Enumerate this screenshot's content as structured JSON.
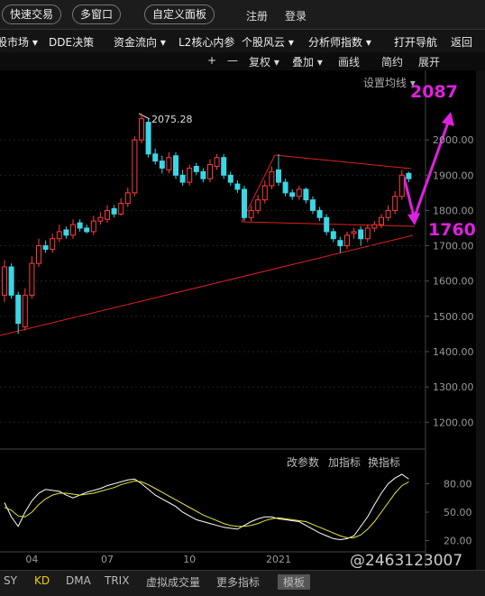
{
  "toolbar": {
    "buttons": [
      "快速交易",
      "多窗口",
      "自定义面板"
    ],
    "links": [
      "注册",
      "登录"
    ]
  },
  "menu": [
    "股市场 ▾",
    "DDE决策",
    "资金流向 ▾",
    "L2核心内参",
    "个股风云 ▾",
    "分析师指数 ▾",
    "打开导航",
    "返回"
  ],
  "chart_toolbar": [
    "+",
    "—",
    "复权 ▾",
    "叠加 ▾",
    "画线",
    "简约",
    "展开"
  ],
  "indicator_buttons": [
    "改参数",
    "加指标",
    "换指标"
  ],
  "tabs": [
    "SY",
    "KD",
    "DMA",
    "TRIX",
    "虚拟成交量",
    "更多指标",
    "模板"
  ],
  "watermark": "@2463123007",
  "chart_data": [
    {
      "type": "candlestick",
      "ma_button": "设置均线 ▾",
      "annotations": [
        "2075.28",
        "2087",
        "1760"
      ],
      "up_color": "#ff3c3c",
      "down_color": "#3ad6e6",
      "categories": [
        null,
        null,
        null,
        null,
        "04",
        null,
        null,
        null,
        null,
        null,
        null,
        null,
        null,
        null,
        null,
        "07",
        null,
        null,
        null,
        null,
        null,
        null,
        null,
        null,
        null,
        null,
        null,
        "10",
        null,
        null,
        null,
        null,
        null,
        null,
        null,
        null,
        null,
        null,
        null,
        null,
        "2021",
        null,
        null,
        null,
        null,
        null,
        null,
        null,
        null,
        null,
        null,
        null,
        null,
        null,
        null,
        null,
        null,
        null,
        null,
        null
      ],
      "open": [
        1560,
        1640,
        1560,
        1470,
        1560,
        1650,
        1700,
        1690,
        1720,
        1745,
        1730,
        1765,
        1750,
        1740,
        1770,
        1775,
        1805,
        1790,
        1820,
        1850,
        2000,
        2050,
        1960,
        1940,
        1915,
        1955,
        1900,
        1880,
        1925,
        1910,
        1890,
        1925,
        1950,
        1900,
        1875,
        1860,
        1780,
        1800,
        1830,
        1870,
        1915,
        1880,
        1850,
        1840,
        1860,
        1830,
        1800,
        1780,
        1740,
        1715,
        1700,
        1735,
        1745,
        1720,
        1750,
        1760,
        1780,
        1800,
        1840,
        1905
      ],
      "high": [
        1660,
        1650,
        1570,
        1580,
        1670,
        1720,
        1715,
        1735,
        1760,
        1755,
        1775,
        1775,
        1760,
        1785,
        1795,
        1815,
        1815,
        1835,
        1865,
        2010,
        2075,
        2060,
        1975,
        1955,
        1965,
        1965,
        1915,
        1930,
        1935,
        1920,
        1945,
        1960,
        1960,
        1910,
        1885,
        1870,
        1815,
        1845,
        1885,
        1925,
        1960,
        1890,
        1860,
        1870,
        1865,
        1840,
        1810,
        1790,
        1750,
        1725,
        1740,
        1750,
        1755,
        1760,
        1770,
        1790,
        1815,
        1855,
        1915,
        1910
      ],
      "low": [
        1540,
        1550,
        1450,
        1460,
        1550,
        1640,
        1680,
        1680,
        1710,
        1720,
        1720,
        1740,
        1735,
        1730,
        1760,
        1765,
        1780,
        1785,
        1810,
        1840,
        1990,
        1950,
        1930,
        1905,
        1905,
        1890,
        1870,
        1870,
        1900,
        1880,
        1880,
        1915,
        1890,
        1870,
        1850,
        1770,
        1770,
        1790,
        1820,
        1860,
        1870,
        1840,
        1830,
        1830,
        1820,
        1790,
        1770,
        1730,
        1710,
        1680,
        1690,
        1720,
        1700,
        1710,
        1740,
        1750,
        1770,
        1790,
        1830,
        1880
      ],
      "close": [
        1640,
        1560,
        1480,
        1560,
        1650,
        1700,
        1690,
        1720,
        1740,
        1730,
        1760,
        1750,
        1740,
        1770,
        1780,
        1800,
        1790,
        1820,
        1850,
        2000,
        2060,
        1960,
        1940,
        1920,
        1950,
        1900,
        1880,
        1920,
        1910,
        1890,
        1930,
        1950,
        1900,
        1880,
        1860,
        1780,
        1800,
        1830,
        1870,
        1910,
        1880,
        1850,
        1840,
        1860,
        1830,
        1800,
        1780,
        1740,
        1720,
        1700,
        1730,
        1740,
        1720,
        1750,
        1760,
        1780,
        1800,
        1840,
        1900,
        1890
      ],
      "ylim": [
        1124,
        2192
      ],
      "yticks": [
        {
          "value": 2000,
          "label": "2000.00"
        },
        {
          "value": 1900,
          "label": "1900.00"
        },
        {
          "value": 1800,
          "label": "1800.00"
        },
        {
          "value": 1700,
          "label": "1700.00"
        },
        {
          "value": 1600,
          "label": "1600.00"
        },
        {
          "value": 1500,
          "label": "1500.00"
        },
        {
          "value": 1400,
          "label": "1400.00"
        },
        {
          "value": 1300,
          "label": "1300.00"
        },
        {
          "value": 1200,
          "label": "1200.00"
        }
      ],
      "grid": true
    },
    {
      "type": "line",
      "series": [
        {
          "color": "#ffffff",
          "values": [
            60,
            45,
            35,
            50,
            62,
            70,
            74,
            73,
            72,
            68,
            65,
            68,
            71,
            73,
            75,
            78,
            80,
            82,
            84,
            85,
            80,
            74,
            68,
            64,
            60,
            56,
            50,
            46,
            42,
            40,
            38,
            36,
            34,
            33,
            32,
            36,
            40,
            43,
            45,
            45,
            43,
            42,
            41,
            40,
            36,
            32,
            28,
            25,
            22,
            21,
            22,
            25,
            35,
            45,
            58,
            70,
            80,
            86,
            90,
            85
          ]
        },
        {
          "color": "#e8e840",
          "values": [
            55,
            52,
            46,
            45,
            50,
            58,
            64,
            68,
            70,
            70,
            69,
            68,
            69,
            70,
            72,
            74,
            76,
            79,
            81,
            83,
            82,
            79,
            75,
            71,
            67,
            63,
            59,
            55,
            51,
            47,
            44,
            41,
            38,
            36,
            35,
            35,
            36,
            38,
            41,
            43,
            44,
            43,
            42,
            41,
            40,
            37,
            34,
            31,
            28,
            25,
            23,
            23,
            26,
            32,
            40,
            50,
            60,
            70,
            78,
            82
          ]
        }
      ],
      "ylim": [
        10,
        110
      ],
      "yticks": [
        {
          "value": 80,
          "label": "80.00"
        },
        {
          "value": 50,
          "label": "50.00"
        },
        {
          "value": 20,
          "label": "20.00"
        }
      ]
    }
  ]
}
